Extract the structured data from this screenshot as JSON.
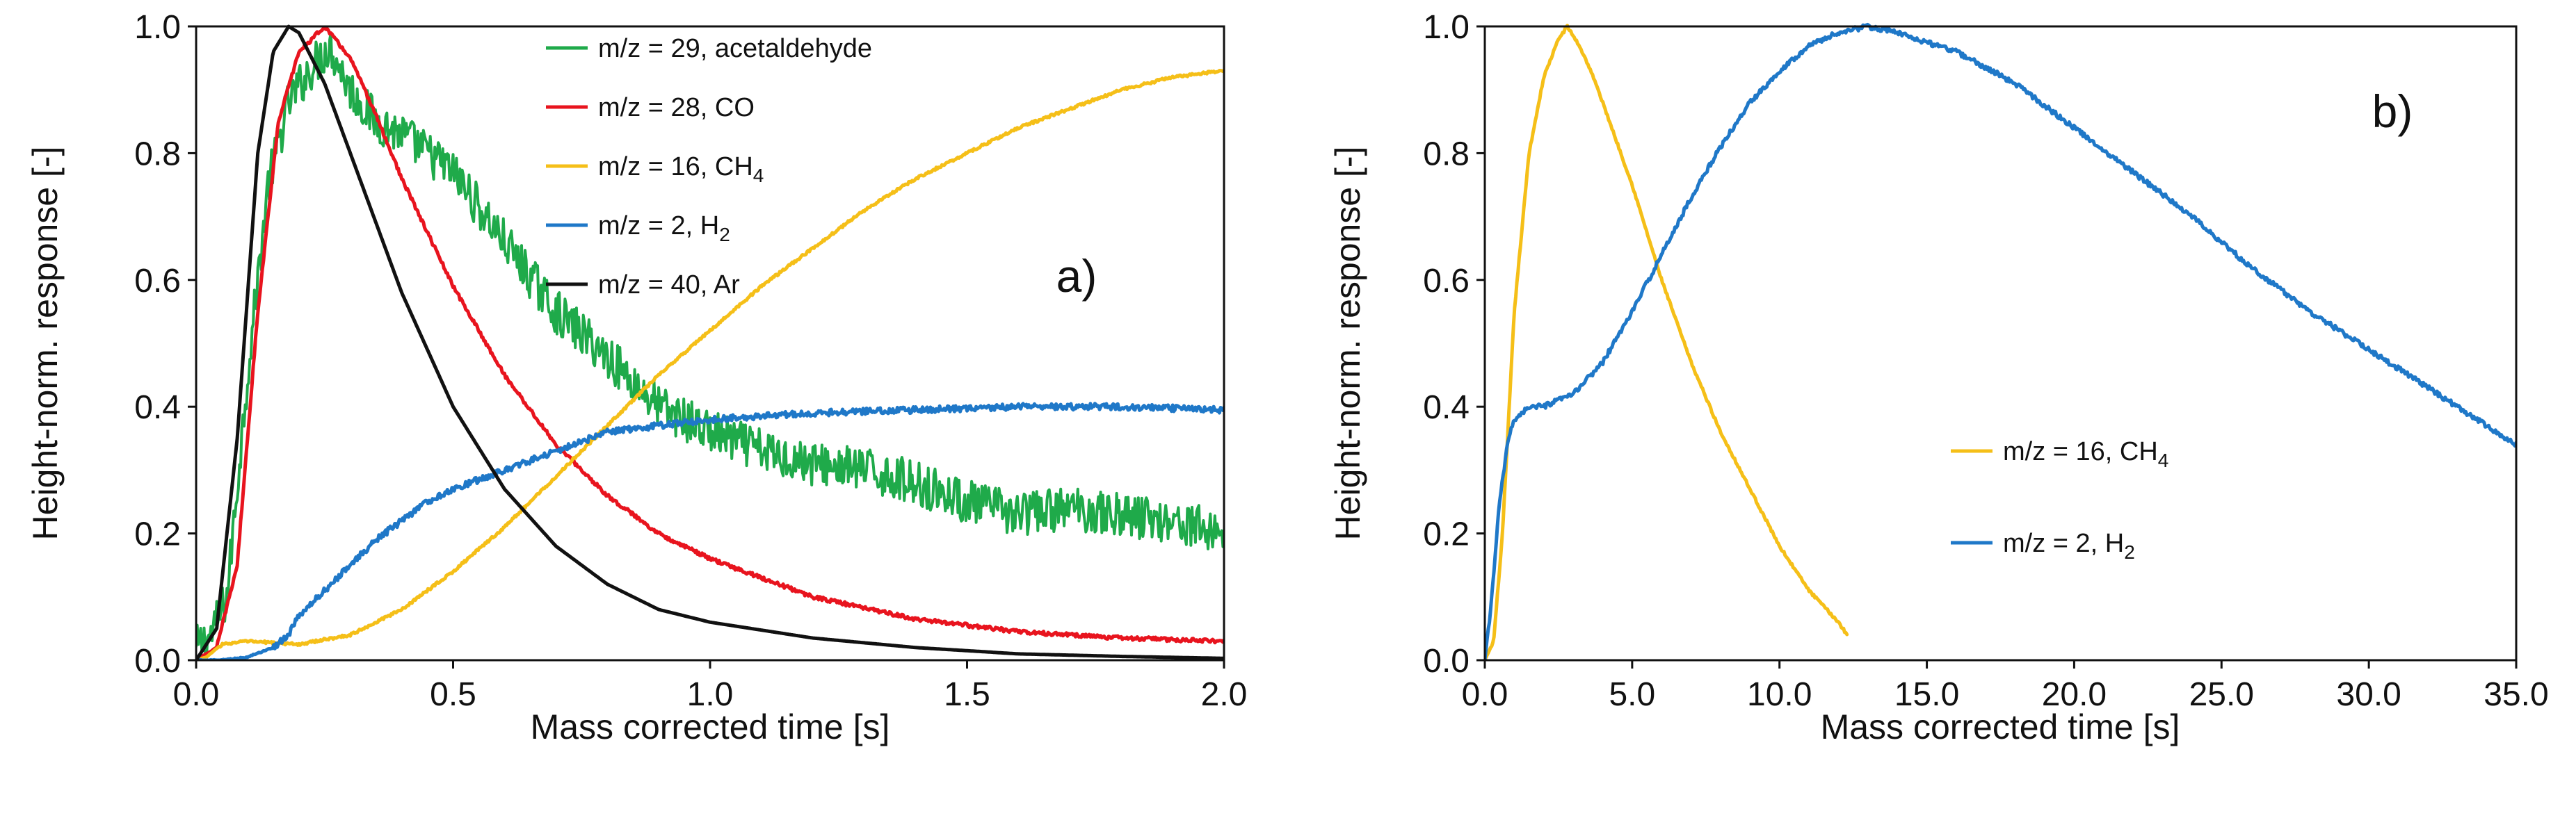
{
  "chart_data": [
    {
      "id": "a",
      "type": "line",
      "panel_label": "a)",
      "xlabel": "Mass corrected time [s]",
      "ylabel": "Height-norm. response [-]",
      "xlim": [
        0,
        2
      ],
      "ylim": [
        0,
        1
      ],
      "xticks": [
        "0.0",
        "0.5",
        "1.0",
        "1.5",
        "2.0"
      ],
      "yticks": [
        "0.0",
        "0.2",
        "0.4",
        "0.6",
        "0.8",
        "1.0"
      ],
      "legend_position": "top-center",
      "series": [
        {
          "name": "m/z = 29, acetaldehyde",
          "color": "#1faa4a",
          "noise": 0.035,
          "x": [
            0,
            0.03,
            0.06,
            0.1,
            0.14,
            0.18,
            0.22,
            0.26,
            0.3,
            0.35,
            0.4,
            0.45,
            0.5,
            0.6,
            0.7,
            0.8,
            0.9,
            1.0,
            1.1,
            1.2,
            1.3,
            1.4,
            1.5,
            1.6,
            1.7,
            1.8,
            1.9,
            2.0
          ],
          "y": [
            0.02,
            0.04,
            0.1,
            0.45,
            0.75,
            0.88,
            0.93,
            0.97,
            0.9,
            0.85,
            0.83,
            0.8,
            0.77,
            0.66,
            0.55,
            0.48,
            0.4,
            0.36,
            0.33,
            0.31,
            0.3,
            0.28,
            0.25,
            0.23,
            0.24,
            0.23,
            0.22,
            0.2
          ]
        },
        {
          "name": "m/z = 28, CO",
          "color": "#e8141e",
          "noise": 0.003,
          "x": [
            0,
            0.04,
            0.08,
            0.12,
            0.16,
            0.2,
            0.25,
            0.3,
            0.35,
            0.4,
            0.5,
            0.6,
            0.7,
            0.8,
            0.9,
            1.0,
            1.2,
            1.4,
            1.6,
            1.8,
            2.0
          ],
          "y": [
            0,
            0.02,
            0.15,
            0.55,
            0.85,
            0.96,
            1.0,
            0.95,
            0.86,
            0.76,
            0.59,
            0.45,
            0.34,
            0.26,
            0.2,
            0.16,
            0.1,
            0.065,
            0.045,
            0.035,
            0.03
          ]
        },
        {
          "name": "m/z = 16, CH",
          "name_subscript": "4",
          "color": "#f5bf18",
          "noise": 0.002,
          "x": [
            0,
            0.02,
            0.05,
            0.1,
            0.2,
            0.3,
            0.4,
            0.5,
            0.6,
            0.7,
            0.8,
            0.9,
            1.0,
            1.1,
            1.2,
            1.3,
            1.4,
            1.5,
            1.6,
            1.7,
            1.8,
            1.9,
            2.0
          ],
          "y": [
            0,
            0.005,
            0.025,
            0.03,
            0.025,
            0.04,
            0.08,
            0.14,
            0.21,
            0.29,
            0.37,
            0.45,
            0.52,
            0.59,
            0.65,
            0.71,
            0.76,
            0.8,
            0.84,
            0.87,
            0.9,
            0.92,
            0.93
          ]
        },
        {
          "name": "m/z = 2, H",
          "name_subscript": "2",
          "color": "#1f78c8",
          "noise": 0.005,
          "x": [
            0,
            0.05,
            0.1,
            0.15,
            0.18,
            0.2,
            0.25,
            0.3,
            0.35,
            0.4,
            0.45,
            0.5,
            0.6,
            0.7,
            0.8,
            0.9,
            1.0,
            1.2,
            1.4,
            1.6,
            1.8,
            2.0
          ],
          "y": [
            0,
            0,
            0.005,
            0.02,
            0.04,
            0.07,
            0.11,
            0.15,
            0.19,
            0.22,
            0.25,
            0.27,
            0.3,
            0.33,
            0.36,
            0.37,
            0.38,
            0.39,
            0.395,
            0.4,
            0.4,
            0.395
          ]
        },
        {
          "name": "m/z = 40, Ar",
          "color": "#111111",
          "noise": 0,
          "x": [
            0,
            0.04,
            0.08,
            0.12,
            0.15,
            0.18,
            0.2,
            0.25,
            0.3,
            0.35,
            0.4,
            0.5,
            0.6,
            0.7,
            0.8,
            0.9,
            1.0,
            1.2,
            1.4,
            1.6,
            1.8,
            2.0
          ],
          "y": [
            0,
            0.05,
            0.35,
            0.8,
            0.96,
            1.0,
            0.99,
            0.91,
            0.8,
            0.69,
            0.58,
            0.4,
            0.27,
            0.18,
            0.12,
            0.08,
            0.06,
            0.035,
            0.02,
            0.01,
            0.006,
            0.003
          ]
        }
      ]
    },
    {
      "id": "b",
      "type": "line",
      "panel_label": "b)",
      "xlabel": "Mass corrected time [s]",
      "ylabel": "Height-norm. response [-]",
      "xlim": [
        0,
        35
      ],
      "ylim": [
        0,
        1
      ],
      "xticks": [
        "0.0",
        "5.0",
        "10.0",
        "15.0",
        "20.0",
        "25.0",
        "30.0",
        "35.0"
      ],
      "yticks": [
        "0.0",
        "0.2",
        "0.4",
        "0.6",
        "0.8",
        "1.0"
      ],
      "legend_position": "center-right",
      "series": [
        {
          "name": "m/z = 16, CH",
          "name_subscript": "4",
          "color": "#f5bf18",
          "noise": 0.002,
          "x": [
            0,
            0.3,
            0.6,
            1.0,
            1.5,
            2.0,
            2.5,
            2.8,
            3.2,
            3.6,
            4.0,
            5.0,
            6.0,
            7.0,
            8.0,
            9.0,
            10.0,
            11.0,
            12.0,
            12.3
          ],
          "y": [
            0,
            0.03,
            0.2,
            0.55,
            0.8,
            0.92,
            0.98,
            1.0,
            0.97,
            0.93,
            0.88,
            0.75,
            0.6,
            0.47,
            0.36,
            0.27,
            0.18,
            0.11,
            0.06,
            0.04
          ]
        },
        {
          "name": "m/z = 2, H",
          "name_subscript": "2",
          "color": "#1f78c8",
          "noise": 0.004,
          "x": [
            0,
            0.2,
            0.5,
            0.8,
            1.0,
            1.5,
            2.0,
            3.0,
            4.0,
            5.0,
            6.0,
            7.0,
            8.0,
            9.0,
            10.0,
            11.0,
            12.0,
            13.0,
            14.0,
            16.0,
            18.0,
            20.0,
            22.0,
            24.0,
            26.0,
            28.0,
            30.0,
            32.0,
            34.0,
            35.0
          ],
          "y": [
            0,
            0.08,
            0.25,
            0.35,
            0.38,
            0.4,
            0.4,
            0.42,
            0.47,
            0.55,
            0.64,
            0.73,
            0.81,
            0.88,
            0.93,
            0.97,
            0.99,
            1.0,
            0.99,
            0.96,
            0.91,
            0.84,
            0.77,
            0.7,
            0.62,
            0.55,
            0.49,
            0.43,
            0.37,
            0.34
          ]
        }
      ]
    }
  ]
}
